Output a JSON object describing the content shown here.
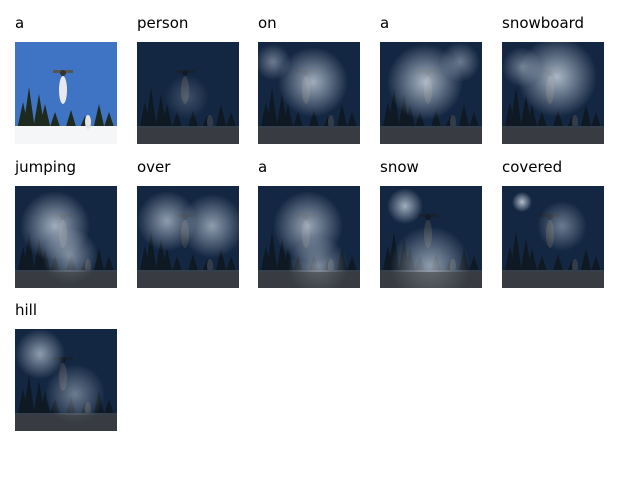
{
  "caption_words": [
    {
      "word": "a",
      "kind": "original"
    },
    {
      "word": "person",
      "kind": "attention"
    },
    {
      "word": "on",
      "kind": "attention"
    },
    {
      "word": "a",
      "kind": "attention"
    },
    {
      "word": "snowboard",
      "kind": "attention"
    },
    {
      "word": "jumping",
      "kind": "attention"
    },
    {
      "word": "over",
      "kind": "attention"
    },
    {
      "word": "a",
      "kind": "attention"
    },
    {
      "word": "snow",
      "kind": "attention"
    },
    {
      "word": "covered",
      "kind": "attention"
    },
    {
      "word": "hill",
      "kind": "attention"
    }
  ],
  "colors": {
    "sky": "#3f73c4",
    "snow": "#f4f6f8",
    "trees": "#1f2a1e",
    "dark_overlay": "#0b1626",
    "attention_glow": "#d8e2ee"
  }
}
